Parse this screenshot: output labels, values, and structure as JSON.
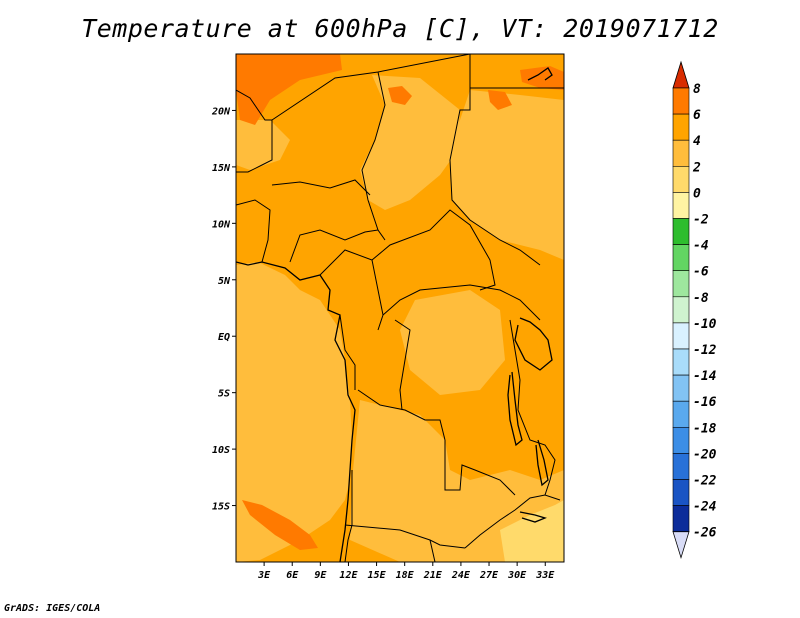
{
  "title": "Temperature at 600hPa [C], VT: 2019071712",
  "footer": "GrADS: IGES/COLA",
  "map": {
    "lon_range": [
      0,
      35
    ],
    "lat_range": [
      -20,
      25
    ],
    "x_ticks": [
      "3E",
      "6E",
      "9E",
      "12E",
      "15E",
      "18E",
      "21E",
      "24E",
      "27E",
      "30E",
      "33E"
    ],
    "x_tick_values": [
      3,
      6,
      9,
      12,
      15,
      18,
      21,
      24,
      27,
      30,
      33
    ],
    "y_ticks": [
      "20N",
      "15N",
      "10N",
      "5N",
      "EQ",
      "5S",
      "10S",
      "15S"
    ],
    "y_tick_values": [
      20,
      15,
      10,
      5,
      0,
      -5,
      -10,
      -15
    ],
    "base_color": "#ffa400",
    "region_colors": {
      "light_orange": "#ffbd3c",
      "orange": "#ffa400",
      "dark_orange": "#ff7a00",
      "pale_yellow": "#ffda6b"
    }
  },
  "colorbar": {
    "labels": [
      "8",
      "6",
      "4",
      "2",
      "0",
      "-2",
      "-4",
      "-6",
      "-8",
      "-10",
      "-12",
      "-14",
      "-16",
      "-18",
      "-20",
      "-22",
      "-24",
      "-26"
    ],
    "colors": [
      "#ff4a00",
      "#ff7a00",
      "#ffa400",
      "#ffbd3c",
      "#ffda6b",
      "#fff4a3",
      "#2ebd2e",
      "#63d563",
      "#9ee79e",
      "#cff3cf",
      "#d9f1ff",
      "#a9dcfa",
      "#82c3f4",
      "#5aa9ee",
      "#3c8ee6",
      "#2871d8",
      "#1a54c4",
      "#0c2c9a"
    ],
    "top_arrow_color": "#d82c00",
    "bottom_arrow_color": "#d8dcf6"
  }
}
